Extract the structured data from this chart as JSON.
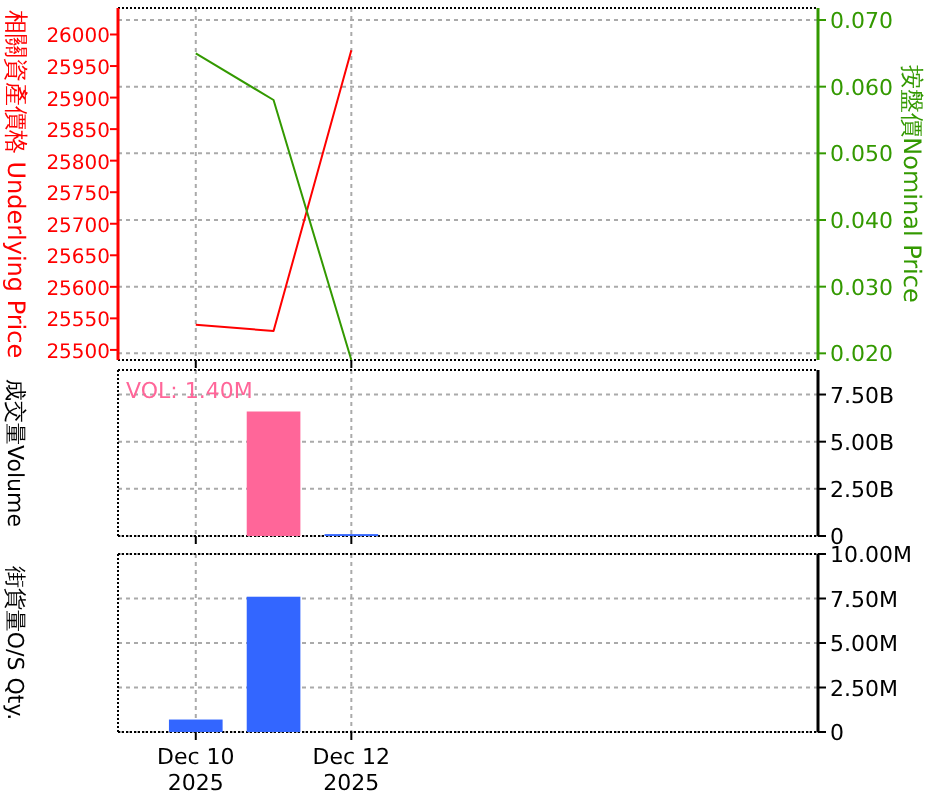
{
  "chart_data": [
    {
      "type": "line",
      "ylabel": "相關資產價格 Underlying Price",
      "y2label": "按盤價Nominal Price",
      "grid": true,
      "tick_labels": "y",
      "x": [
        "2025-12-10",
        "2025-12-11",
        "2025-12-12"
      ],
      "xlim": [
        "2025-12-09",
        "2025-12-18"
      ],
      "xticks": [
        {
          "value": "2025-12-10",
          "label": null
        },
        {
          "value": "2025-12-12",
          "label": null
        }
      ],
      "ylim": [
        25484,
        26042
      ],
      "yticks": [
        25500,
        25550,
        25600,
        25650,
        25700,
        25750,
        25800,
        25850,
        25900,
        25950,
        26000
      ],
      "y2lim": [
        0.019,
        0.0718
      ],
      "y2ticks": [
        {
          "value": 0.02,
          "label": "0.020"
        },
        {
          "value": 0.03,
          "label": "0.030"
        },
        {
          "value": 0.04,
          "label": "0.040"
        },
        {
          "value": 0.05,
          "label": "0.050"
        },
        {
          "value": 0.06,
          "label": "0.060"
        },
        {
          "value": 0.07,
          "label": "0.070"
        }
      ],
      "series": [
        {
          "color": "#ff0000",
          "values": [
            25540,
            25530,
            25975
          ]
        },
        {
          "color": "#339900",
          "axis": "y2",
          "values": [
            0.065,
            0.058,
            0.019
          ]
        }
      ]
    },
    {
      "type": "bar",
      "ylabel": "成交量Volume",
      "grid": true,
      "tick_labels": "y",
      "annotations": [
        "VOL: 1.40M"
      ],
      "x": [
        "2025-12-11",
        "2025-12-12"
      ],
      "xlim": [
        "2025-12-09",
        "2025-12-18"
      ],
      "xticks": [
        {
          "value": "2025-12-10",
          "label": null
        },
        {
          "value": "2025-12-12",
          "label": null
        }
      ],
      "y2lim": [
        0,
        8800000000
      ],
      "y2ticks": [
        0,
        {
          "value": 2500000000,
          "label": "2.50B"
        },
        {
          "value": 5000000000,
          "label": "5.00B"
        },
        {
          "value": 7500000000,
          "label": "7.50B"
        }
      ],
      "series": [
        {
          "axis": "y2",
          "colors": [
            "#ff6699",
            "#3366ff"
          ],
          "values": [
            6600000000,
            100000000
          ]
        }
      ]
    },
    {
      "type": "bar",
      "ylabel": "街貨量O/S Qty.",
      "grid": true,
      "x": [
        "2025-12-10",
        "2025-12-11"
      ],
      "xlim": [
        "2025-12-09",
        "2025-12-18"
      ],
      "xticks": [
        {
          "value": "2025-12-10",
          "label": "Dec 10\n2025"
        },
        {
          "value": "2025-12-12",
          "label": "Dec 12\n2025"
        }
      ],
      "y2lim": [
        0,
        10000000
      ],
      "y2ticks": [
        0,
        {
          "value": 2500000,
          "label": "2.50M"
        },
        {
          "value": 5000000,
          "label": "5.00M"
        },
        {
          "value": 7500000,
          "label": "7.50M"
        },
        {
          "value": 10000000,
          "label": "10.00M"
        }
      ],
      "series": [
        {
          "axis": "y2",
          "color": "#3366ff",
          "values": [
            700000,
            7600000
          ]
        }
      ]
    }
  ]
}
